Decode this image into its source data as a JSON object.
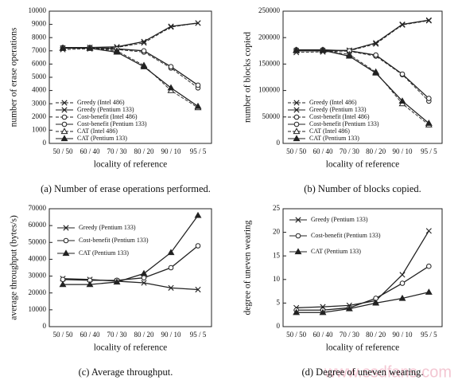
{
  "watermark": "www.ssdfans.com",
  "chart_data": [
    {
      "type": "line",
      "caption": "(a) Number of erase operations performed.",
      "ylabel": "number of erase operations",
      "xlabel": "locality of reference",
      "categories": [
        "50 / 50",
        "60 / 40",
        "70 / 30",
        "80 / 20",
        "90 / 10",
        "95 / 5"
      ],
      "ylim": [
        0,
        10000
      ],
      "yticks": [
        0,
        1000,
        2000,
        3000,
        4000,
        5000,
        6000,
        7000,
        8000,
        9000,
        10000
      ],
      "legend": "lower left",
      "series": [
        {
          "name": "Greedy (Intel 486)",
          "color": "#222",
          "marker": "x",
          "linestyle": "dashed",
          "values": [
            7100,
            7150,
            7250,
            7600,
            8800,
            9100
          ]
        },
        {
          "name": "Greedy (Pentium 133)",
          "color": "#222",
          "marker": "x",
          "linestyle": "solid",
          "values": [
            7200,
            7250,
            7300,
            7700,
            8850,
            9100
          ]
        },
        {
          "name": "Cost-benefit (Intel 486)",
          "color": "#222",
          "marker": "o",
          "linestyle": "dashed",
          "values": [
            7200,
            7200,
            7100,
            6900,
            5700,
            4200
          ]
        },
        {
          "name": "Cost-benefit (Pentium 133)",
          "color": "#222",
          "marker": "o",
          "linestyle": "solid",
          "values": [
            7250,
            7250,
            7150,
            7000,
            5800,
            4400
          ]
        },
        {
          "name": "CAT (Intel 486)",
          "color": "#222",
          "marker": "triangle-open",
          "linestyle": "dashed",
          "values": [
            7200,
            7200,
            7000,
            5900,
            4000,
            2700
          ]
        },
        {
          "name": "CAT (Pentium 133)",
          "color": "#222",
          "marker": "triangle",
          "linestyle": "solid",
          "values": [
            7200,
            7200,
            6900,
            5800,
            4200,
            2800
          ]
        }
      ]
    },
    {
      "type": "line",
      "caption": "(b) Number of blocks copied.",
      "ylabel": "number of blocks copied",
      "xlabel": "locality of reference",
      "categories": [
        "50 / 50",
        "60 / 40",
        "70 / 30",
        "80 / 20",
        "90 / 10",
        "95 / 5"
      ],
      "ylim": [
        0,
        250000
      ],
      "yticks": [
        0,
        50000,
        100000,
        150000,
        200000,
        250000
      ],
      "legend": "lower left",
      "series": [
        {
          "name": "Greedy (Intel 486)",
          "color": "#222",
          "marker": "x",
          "linestyle": "dashed",
          "values": [
            172000,
            173000,
            175000,
            188000,
            224000,
            232000
          ]
        },
        {
          "name": "Greedy (Pentium 133)",
          "color": "#222",
          "marker": "x",
          "linestyle": "solid",
          "values": [
            175000,
            175000,
            176000,
            190000,
            225000,
            233000
          ]
        },
        {
          "name": "Cost-benefit (Intel 486)",
          "color": "#222",
          "marker": "o",
          "linestyle": "dashed",
          "values": [
            176000,
            176000,
            174000,
            165000,
            130000,
            80000
          ]
        },
        {
          "name": "Cost-benefit (Pentium 133)",
          "color": "#222",
          "marker": "o",
          "linestyle": "solid",
          "values": [
            177000,
            177000,
            175000,
            167000,
            131000,
            85000
          ]
        },
        {
          "name": "CAT (Intel 486)",
          "color": "#222",
          "marker": "triangle-open",
          "linestyle": "dashed",
          "values": [
            176000,
            176000,
            168000,
            135000,
            75000,
            35000
          ]
        },
        {
          "name": "CAT (Pentium 133)",
          "color": "#222",
          "marker": "triangle",
          "linestyle": "solid",
          "values": [
            176000,
            176000,
            165000,
            133000,
            80000,
            38000
          ]
        }
      ]
    },
    {
      "type": "line",
      "caption": "(c) Average throughput.",
      "ylabel": "average throughput   (bytes/s)",
      "xlabel": "locality of reference",
      "categories": [
        "50 / 50",
        "60 / 40",
        "70 / 30",
        "80 / 20",
        "90 / 10",
        "95 / 5"
      ],
      "ylim": [
        0,
        70000
      ],
      "yticks": [
        0,
        10000,
        20000,
        30000,
        40000,
        50000,
        60000,
        70000
      ],
      "legend": "upper left",
      "series": [
        {
          "name": "Greedy (Pentium 133)",
          "color": "#222",
          "marker": "x",
          "linestyle": "solid",
          "values": [
            28500,
            28000,
            27000,
            26000,
            23000,
            22000
          ]
        },
        {
          "name": "Cost-benefit (Pentium 133)",
          "color": "#222",
          "marker": "o",
          "linestyle": "solid",
          "values": [
            28000,
            27500,
            27500,
            29000,
            35000,
            48000
          ]
        },
        {
          "name": "CAT (Pentium 133)",
          "color": "#222",
          "marker": "triangle",
          "linestyle": "solid",
          "values": [
            25000,
            25000,
            26500,
            31500,
            44000,
            66000
          ]
        }
      ]
    },
    {
      "type": "line",
      "caption": "(d) Degree of uneven wearing.",
      "ylabel": "degree of uneven wearing",
      "xlabel": "locality of reference",
      "categories": [
        "50 / 50",
        "60 / 40",
        "70 / 30",
        "80 / 20",
        "90 / 10",
        "95 / 5"
      ],
      "ylim": [
        0,
        25
      ],
      "yticks": [
        0,
        5,
        10,
        15,
        20,
        25
      ],
      "legend": "upper left",
      "series": [
        {
          "name": "Greedy (Pentium 133)",
          "color": "#222",
          "marker": "x",
          "linestyle": "solid",
          "values": [
            4,
            4.2,
            4.5,
            5.5,
            11,
            20.3
          ]
        },
        {
          "name": "Cost-benefit (Pentium 133)",
          "color": "#222",
          "marker": "o",
          "linestyle": "solid",
          "values": [
            3.5,
            3.5,
            4,
            6,
            9.2,
            12.8
          ]
        },
        {
          "name": "CAT (Pentium 133)",
          "color": "#222",
          "marker": "triangle",
          "linestyle": "solid",
          "values": [
            3,
            3,
            3.8,
            5,
            6,
            7.3
          ]
        }
      ]
    }
  ]
}
